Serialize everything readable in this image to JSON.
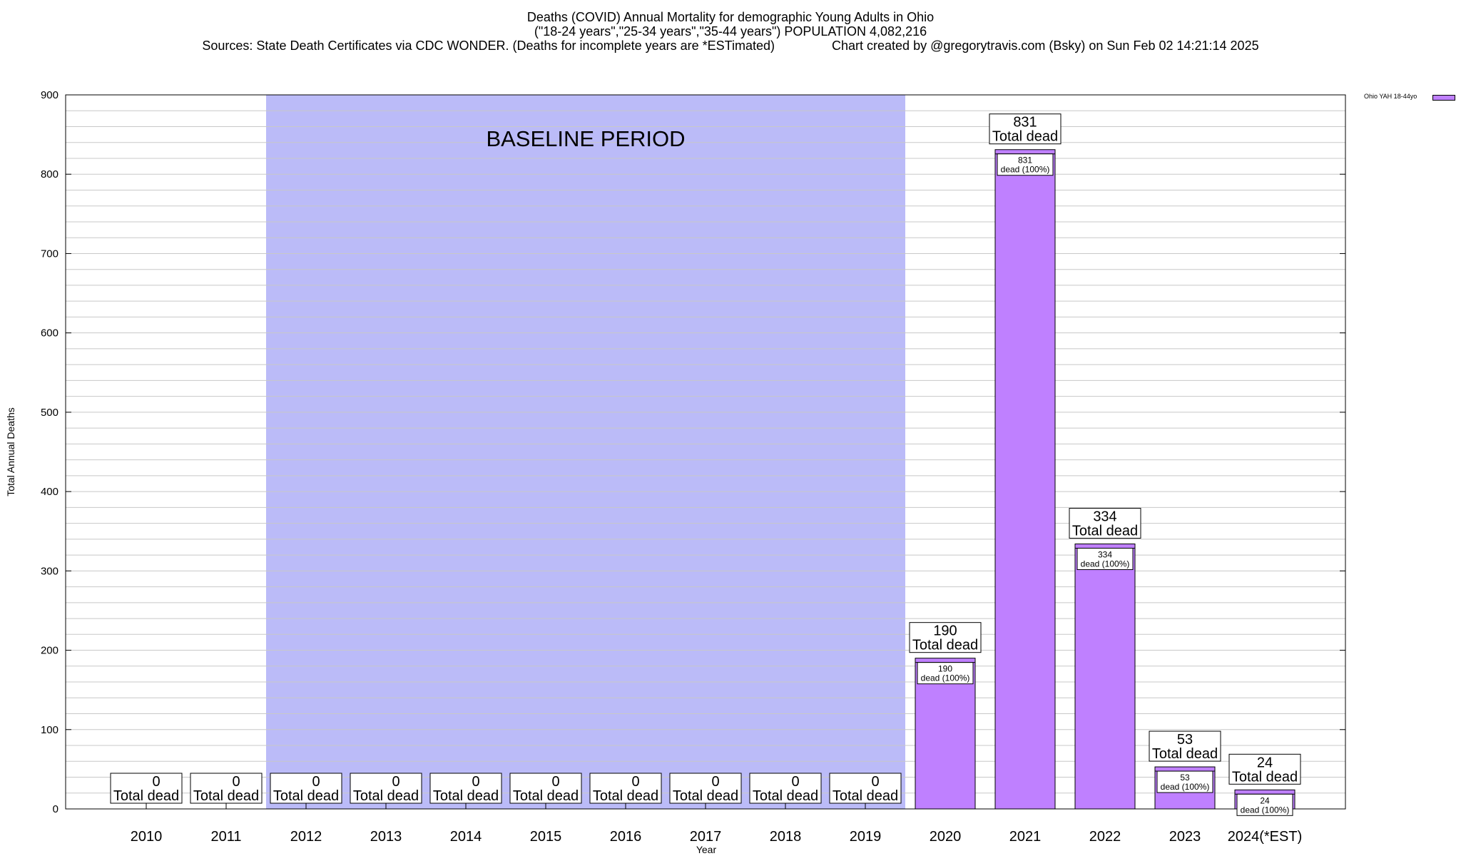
{
  "title_lines": [
    "Deaths (COVID) Annual Mortality for demographic Young Adults in Ohio",
    "(\"18-24 years\",\"25-34 years\",\"35-44 years\") POPULATION 4,082,216",
    "Sources: State Death Certificates via CDC WONDER. (Deaths for incomplete years are *ESTimated)                Chart created by @gregorytravis.com (Bsky) on Sun Feb 02 14:21:14 2025"
  ],
  "colors": {
    "bar": "#bf80ff",
    "baseline": "#bbbbf8",
    "grid": "#c8c8c8"
  },
  "chart_data": {
    "type": "bar",
    "categories": [
      "2010",
      "2011",
      "2012",
      "2013",
      "2014",
      "2015",
      "2016",
      "2017",
      "2018",
      "2019",
      "2020",
      "2021",
      "2022",
      "2023",
      "2024(*EST)"
    ],
    "series": [
      {
        "name": "Ohio YAH 18-44yo",
        "values": [
          0,
          0,
          0,
          0,
          0,
          0,
          0,
          0,
          0,
          0,
          190,
          831,
          334,
          53,
          24
        ]
      }
    ],
    "xlabel": "Year",
    "ylabel": "Total Annual Deaths",
    "ylim": [
      0,
      900
    ],
    "yticks": [
      0,
      100,
      200,
      300,
      400,
      500,
      600,
      700,
      800,
      900
    ],
    "grid": true,
    "legend_position": "top-right",
    "baseline_period": {
      "label": "BASELINE PERIOD",
      "from": "2012",
      "to": "2019"
    },
    "total_label_suffix": "Total dead",
    "inner_label_suffix": "dead (100%)"
  }
}
